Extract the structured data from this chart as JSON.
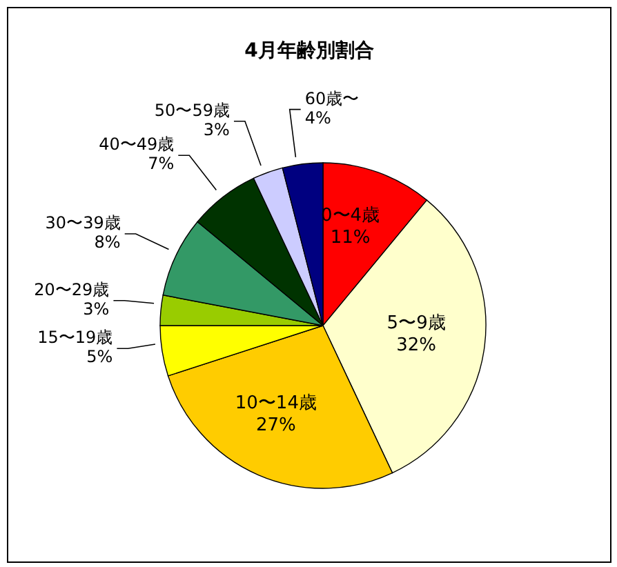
{
  "chart_data": {
    "type": "pie",
    "title": "4月年齢別割合",
    "categories": [
      "0〜4歳",
      "5〜9歳",
      "10〜14歳",
      "15〜19歳",
      "20〜29歳",
      "30〜39歳",
      "40〜49歳",
      "50〜59歳",
      "60歳〜"
    ],
    "values": [
      11,
      32,
      27,
      5,
      3,
      8,
      7,
      3,
      4
    ],
    "colors": [
      "#ff0000",
      "#ffffcc",
      "#ffcc00",
      "#ffff00",
      "#99cc00",
      "#339966",
      "#003300",
      "#ccccff",
      "#000080"
    ],
    "value_labels": [
      "11%",
      "32%",
      "27%",
      "5%",
      "3%",
      "8%",
      "7%",
      "3%",
      "4%"
    ]
  }
}
